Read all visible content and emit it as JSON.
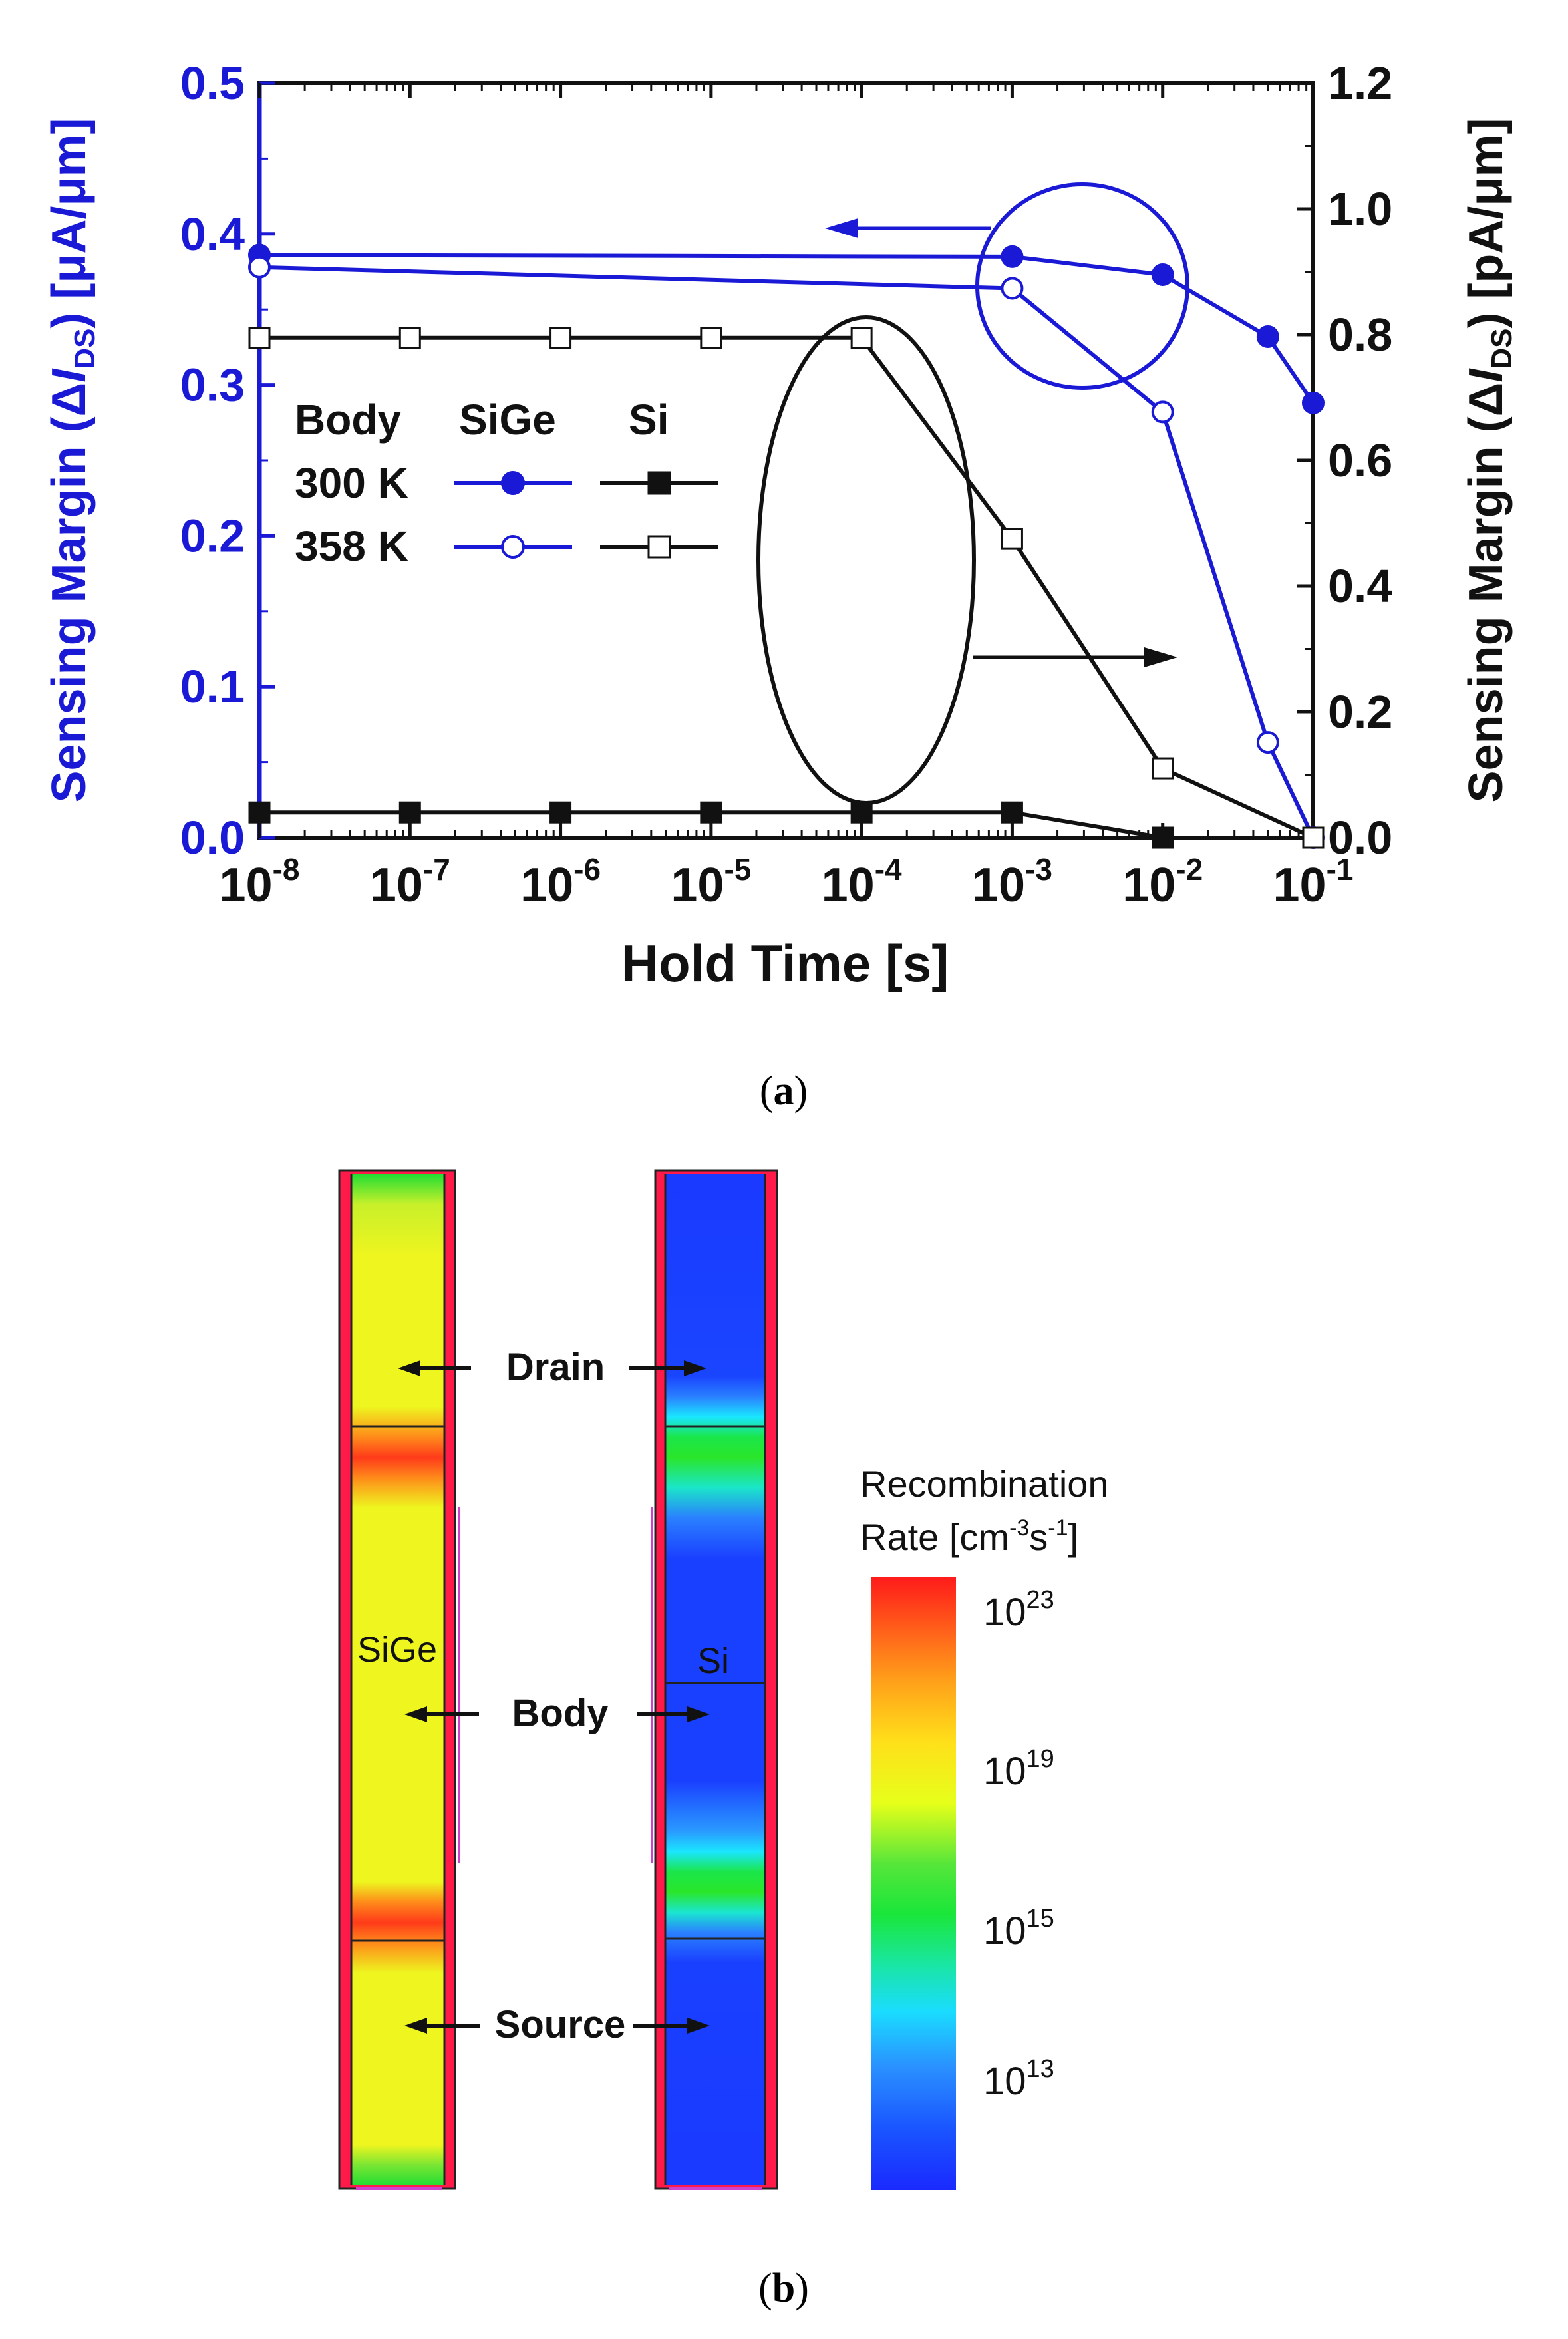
{
  "panel_a": {
    "label_open": "(",
    "label_letter": "a",
    "label_close": ")",
    "legend": {
      "header_body": "Body",
      "header_sige": "SiGe",
      "header_si": "Si",
      "row_300": "300 K",
      "row_358": "358 K"
    },
    "y_left_label_prefix": "Sensing Margin (Δ",
    "y_left_label_var": "I",
    "y_left_label_sub": "DS",
    "y_left_label_unit": ") [μA/μm]",
    "y_right_label_prefix": "Sensing Margin (Δ",
    "y_right_label_var": "I",
    "y_right_label_sub": "DS",
    "y_right_label_unit": ") [pA/μm]",
    "x_tick_base": "10",
    "colors": {
      "sige": "#1a1ad6",
      "si": "#111111",
      "axis_left": "#1a1ad6",
      "axis_right": "#111111"
    }
  },
  "chart_data": {
    "type": "line",
    "xlabel": "Hold Time [s]",
    "x_scale": "log",
    "xlim": [
      1e-08,
      0.1
    ],
    "x_ticks": [
      {
        "value": 1e-08,
        "exp": "-8"
      },
      {
        "value": 1e-07,
        "exp": "-7"
      },
      {
        "value": 1e-06,
        "exp": "-6"
      },
      {
        "value": 1e-05,
        "exp": "-5"
      },
      {
        "value": 0.0001,
        "exp": "-4"
      },
      {
        "value": 0.001,
        "exp": "-3"
      },
      {
        "value": 0.01,
        "exp": "-2"
      },
      {
        "value": 0.1,
        "exp": "-1"
      }
    ],
    "y_left": {
      "label": "Sensing Margin (ΔIDS) [μA/μm]",
      "lim": [
        0,
        0.5
      ],
      "ticks": [
        "0.0",
        "0.1",
        "0.2",
        "0.3",
        "0.4",
        "0.5"
      ]
    },
    "y_right": {
      "label": "Sensing Margin (ΔIDS) [pA/μm]",
      "lim": [
        0,
        1.2
      ],
      "ticks": [
        "0.0",
        "0.2",
        "0.4",
        "0.6",
        "0.8",
        "1.0",
        "1.2"
      ]
    },
    "series": [
      {
        "name": "SiGe 300 K",
        "axis": "left",
        "marker": "filled-circle",
        "color": "#1a1ad6",
        "x": [
          1e-08,
          0.001,
          0.01,
          0.05,
          0.1
        ],
        "y": [
          0.386,
          0.385,
          0.373,
          0.332,
          0.288
        ]
      },
      {
        "name": "SiGe 358 K",
        "axis": "left",
        "marker": "open-circle",
        "color": "#1a1ad6",
        "x": [
          1e-08,
          0.001,
          0.01,
          0.05,
          0.1
        ],
        "y": [
          0.378,
          0.364,
          0.282,
          0.063,
          0.0
        ]
      },
      {
        "name": "Si 300 K",
        "axis": "right",
        "marker": "filled-square",
        "color": "#111111",
        "x": [
          1e-08,
          1e-07,
          1e-06,
          1e-05,
          0.0001,
          0.001,
          0.01,
          0.1
        ],
        "y": [
          0.04,
          0.04,
          0.04,
          0.04,
          0.04,
          0.04,
          0.0,
          0.0
        ]
      },
      {
        "name": "Si 358 K",
        "axis": "right",
        "marker": "open-square",
        "color": "#111111",
        "x": [
          1e-08,
          1e-07,
          1e-06,
          1e-05,
          0.0001,
          0.001,
          0.01,
          0.1
        ],
        "y": [
          0.795,
          0.795,
          0.795,
          0.795,
          0.795,
          0.475,
          0.11,
          0.0
        ]
      }
    ]
  },
  "panel_b": {
    "label_open": "(",
    "label_letter": "b",
    "label_close": ")",
    "label_sige": "SiGe",
    "label_si": "Si",
    "region_drain": "Drain",
    "region_body": "Body",
    "region_source": "Source",
    "colorbar_title_line1": "Recombination",
    "colorbar_title_line2_prefix": "Rate [cm",
    "colorbar_title_line2_exp1": "-3",
    "colorbar_title_line2_mid": "s",
    "colorbar_title_line2_exp2": "-1",
    "colorbar_title_line2_suffix": "]",
    "colorbar_ticks": [
      {
        "base": "10",
        "exp": "23"
      },
      {
        "base": "10",
        "exp": "19"
      },
      {
        "base": "10",
        "exp": "15"
      },
      {
        "base": "10",
        "exp": "13"
      }
    ]
  }
}
